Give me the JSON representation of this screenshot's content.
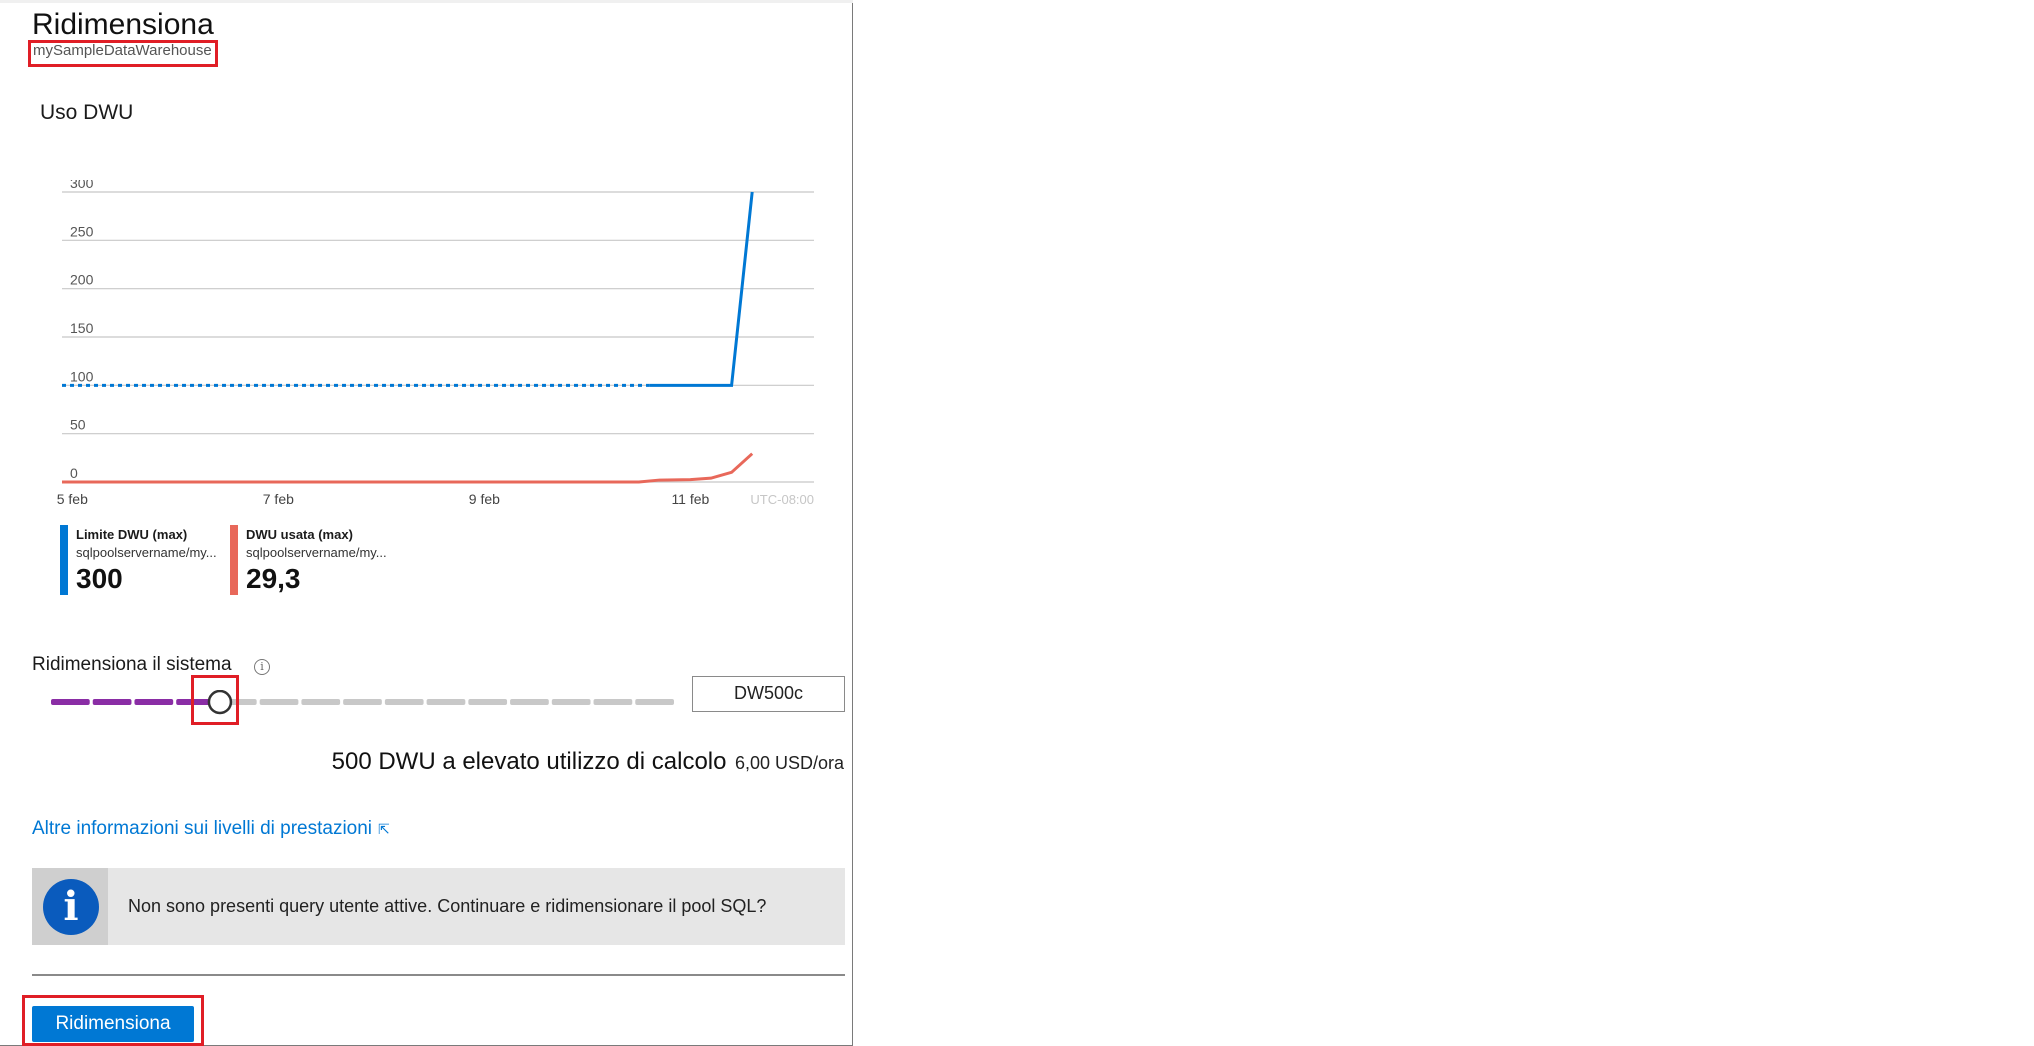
{
  "panel": {
    "title": "Ridimensiona",
    "subtitle": "mySampleDataWarehouse"
  },
  "usage": {
    "title": "Uso DWU",
    "chart_data": {
      "type": "line",
      "timezone_label": "UTC-08:00",
      "ylim": [
        0,
        300
      ],
      "y_ticks": [
        "300",
        "250",
        "200",
        "150",
        "100",
        "50",
        "0"
      ],
      "x_tick_labels": [
        "5 feb",
        "7 feb",
        "9 feb",
        "11 feb"
      ],
      "xlim_days": [
        4.9,
        12.2
      ],
      "x_ticks_days": [
        5,
        7,
        9,
        11
      ],
      "series": [
        {
          "name": "Limite DWU (max)",
          "color": "#0078d4",
          "dashed_until_day": 10.6,
          "points": [
            [
              4.9,
              100
            ],
            [
              10.6,
              100
            ],
            [
              11.4,
              100
            ],
            [
              11.6,
              300
            ]
          ]
        },
        {
          "name": "DWU usata (max)",
          "color": "#e8685a",
          "points": [
            [
              4.9,
              0
            ],
            [
              10.5,
              0
            ],
            [
              10.7,
              2
            ],
            [
              11.0,
              2.5
            ],
            [
              11.2,
              4
            ],
            [
              11.4,
              10
            ],
            [
              11.6,
              29.3
            ]
          ]
        }
      ]
    },
    "legend": [
      {
        "name": "Limite DWU (max)",
        "resource": "sqlpoolservername/my...",
        "value": "300",
        "color": "#0078d4"
      },
      {
        "name": "DWU usata (max)",
        "resource": "sqlpoolservername/my...",
        "value": "29,3",
        "color": "#e8685a"
      }
    ]
  },
  "scale": {
    "label": "Ridimensiona il sistema",
    "info_icon": "info-icon",
    "slider": {
      "steps": 15,
      "selected_index": 4,
      "active_color": "#8a2da5",
      "inactive_color": "#c8c8c8"
    },
    "selected_value": "DW500c",
    "performance_text": "500 DWU a elevato utilizzo di calcolo",
    "price": "6,00 USD/ora"
  },
  "link": {
    "text": "Altre informazioni sui livelli di prestazioni",
    "icon": "external-link-icon"
  },
  "message": {
    "icon": "info-circle-icon",
    "text": "Non sono presenti query utente attive. Continuare e ridimensionare il pool SQL?"
  },
  "actions": {
    "primary_label": "Ridimensiona"
  }
}
